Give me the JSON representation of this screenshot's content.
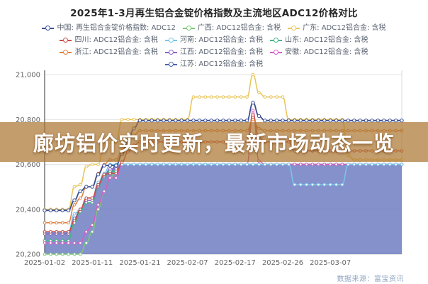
{
  "header": {
    "title": "2025年1-3月再生铝合金锭价格指数及主流地区ADC12价格对比"
  },
  "banner": {
    "text": "廊坊铝价实时更新，最新市场动态一览",
    "background": "rgba(170,115,45,0.70)",
    "text_color": "#ffffff"
  },
  "footer": {
    "source_label": "数据来源：富宝资讯"
  },
  "colors": {
    "title_text": "#262626",
    "legend_text": "#5b6472",
    "grid_line": "#e4e4e4",
    "axis_left": "#555555",
    "axis_right": "#d9d9d9",
    "tick_text": "#666666",
    "area_fill": "rgba(92,108,185,0.75)"
  },
  "chart_data": {
    "type": "line",
    "title": "2025年1-3月再生铝合金锭价格指数及主流地区ADC12价格对比",
    "xlabel": "",
    "ylabel": "",
    "grid": true,
    "legend_position": "top",
    "ylim": [
      20200,
      21000
    ],
    "y_ticks": [
      {
        "value": 21000,
        "label": "21,000"
      },
      {
        "value": 20800,
        "label": "20,800"
      },
      {
        "value": 20600,
        "label": "20,600"
      },
      {
        "value": 20400,
        "label": "20,400"
      },
      {
        "value": 20200,
        "label": "20,200"
      }
    ],
    "x": [
      "2025-01-02",
      "2025-01-03",
      "2025-01-04",
      "2025-01-06",
      "2025-01-07",
      "2025-01-08",
      "2025-01-09",
      "2025-01-10",
      "2025-01-11",
      "2025-01-13",
      "2025-01-14",
      "2025-01-15",
      "2025-01-16",
      "2025-01-17",
      "2025-01-18",
      "2025-01-20",
      "2025-01-21",
      "2025-01-22",
      "2025-01-23",
      "2025-01-24",
      "2025-01-25",
      "2025-01-26",
      "2025-01-27",
      "2025-02-06",
      "2025-02-07",
      "2025-02-08",
      "2025-02-10",
      "2025-02-11",
      "2025-02-12",
      "2025-02-13",
      "2025-02-14",
      "2025-02-15",
      "2025-02-17",
      "2025-02-18",
      "2025-02-19",
      "2025-02-20",
      "2025-02-21",
      "2025-02-22",
      "2025-02-24",
      "2025-02-25",
      "2025-02-26",
      "2025-02-27",
      "2025-02-28",
      "2025-03-01",
      "2025-03-03",
      "2025-03-04",
      "2025-03-05",
      "2025-03-06",
      "2025-03-07",
      "2025-03-08",
      "2025-03-10",
      "2025-03-11",
      "2025-03-12",
      "2025-03-13",
      "2025-03-14",
      "2025-03-15",
      "2025-03-17",
      "2025-03-18",
      "2025-03-19",
      "2025-03-20",
      "2025-03-21"
    ],
    "x_tick_indices": [
      0,
      8,
      16,
      24,
      32,
      40,
      48
    ],
    "x_tick_labels": [
      "2025-01-02",
      "2025-01-11",
      "2025-01-21",
      "2025-02-07",
      "2025-02-17",
      "2025-02-26",
      "2025-03-07"
    ],
    "series": [
      {
        "key": "china",
        "name": "中国",
        "legend_label": "中国: 再生铝合金锭价格指数: ADC12",
        "color": "#3a4f93",
        "z": 9,
        "marker_r": 2.2,
        "width": 1.8,
        "values": [
          20395,
          20395,
          20395,
          20395,
          20395,
          20440,
          20480,
          20500,
          20500,
          20555,
          20595,
          20595,
          20595,
          20645,
          20700,
          20760,
          20795,
          20795,
          20795,
          20795,
          20795,
          20795,
          20795,
          20795,
          20795,
          20795,
          20795,
          20795,
          20795,
          20795,
          20795,
          20795,
          20795,
          20795,
          20795,
          20875,
          20815,
          20795,
          20795,
          20795,
          20795,
          20795,
          20795,
          20795,
          20795,
          20795,
          20795,
          20795,
          20795,
          20795,
          20795,
          20795,
          20795,
          20795,
          20795,
          20795,
          20795,
          20795,
          20795,
          20795,
          20795
        ]
      },
      {
        "key": "guangxi",
        "name": "广西",
        "legend_label": "广西: ADC12铝合金: 含税",
        "color": "#7dc87a",
        "z": 1,
        "marker_r": 1.8,
        "width": 1.5,
        "values": [
          20200,
          20200,
          20200,
          20200,
          20200,
          20200,
          20200,
          20250,
          20300,
          20400,
          20480,
          20540,
          20570,
          20600,
          20600,
          20600,
          20600,
          20600,
          20600,
          20600,
          20600,
          20600,
          20600,
          20600,
          20600,
          20600,
          20600,
          20600,
          20600,
          20600,
          20600,
          20600,
          20600,
          20600,
          20600,
          20600,
          20600,
          20600,
          20600,
          20600,
          20600,
          20600,
          20600,
          20600,
          20600,
          20600,
          20600,
          20600,
          20600,
          20600,
          20600,
          20600,
          20600,
          20600,
          20600,
          20600,
          20600,
          20600,
          20600,
          20600,
          20600
        ]
      },
      {
        "key": "guangdong",
        "name": "广东",
        "legend_label": "广东: ADC12铝合金: 含税",
        "color": "#e9c65c",
        "z": 8,
        "marker_r": 1.8,
        "width": 1.6,
        "values": [
          20400,
          20400,
          20400,
          20400,
          20400,
          20500,
          20510,
          20590,
          20600,
          20600,
          20690,
          20700,
          20700,
          20800,
          20800,
          20800,
          20800,
          20800,
          20800,
          20800,
          20800,
          20800,
          20800,
          20800,
          20800,
          20900,
          20900,
          20900,
          20900,
          20900,
          20900,
          20900,
          20900,
          20900,
          20900,
          21000,
          20920,
          20900,
          20900,
          20900,
          20900,
          20800,
          20800,
          20800,
          20800,
          20800,
          20800,
          20800,
          20800,
          20800,
          20800,
          20640,
          20620,
          20620,
          20620,
          20620,
          20620,
          20620,
          20620,
          20620,
          20620
        ]
      },
      {
        "key": "sichuan",
        "name": "四川",
        "legend_label": "四川: ADC12铝合金: 含税",
        "color": "#cb4d49",
        "z": 6,
        "marker_r": 1.8,
        "width": 1.5,
        "values": [
          20300,
          20300,
          20300,
          20300,
          20300,
          20350,
          20400,
          20450,
          20450,
          20510,
          20555,
          20560,
          20560,
          20610,
          20655,
          20685,
          20700,
          20700,
          20700,
          20700,
          20700,
          20700,
          20700,
          20700,
          20700,
          20700,
          20700,
          20700,
          20700,
          20700,
          20700,
          20700,
          20700,
          20700,
          20700,
          20820,
          20720,
          20700,
          20700,
          20700,
          20700,
          20700,
          20660,
          20660,
          20660,
          20660,
          20660,
          20660,
          20660,
          20660,
          20660,
          20660,
          20660,
          20660,
          20660,
          20660,
          20660,
          20660,
          20660,
          20660,
          20660
        ]
      },
      {
        "key": "henan",
        "name": "河南",
        "legend_label": "河南: ADC12铝合金: 含税",
        "color": "#79c6ea",
        "z": 5,
        "marker_r": 1.8,
        "width": 1.5,
        "values": [
          20300,
          20300,
          20300,
          20300,
          20300,
          20380,
          20400,
          20450,
          20450,
          20520,
          20560,
          20600,
          20600,
          20600,
          20600,
          20600,
          20600,
          20600,
          20600,
          20600,
          20600,
          20600,
          20600,
          20600,
          20600,
          20600,
          20600,
          20600,
          20600,
          20600,
          20600,
          20600,
          20600,
          20600,
          20600,
          20600,
          20600,
          20600,
          20600,
          20600,
          20600,
          20600,
          20510,
          20510,
          20510,
          20510,
          20510,
          20510,
          20510,
          20510,
          20510,
          20600,
          20600,
          20600,
          20600,
          20600,
          20600,
          20600,
          20600,
          20600,
          20600
        ]
      },
      {
        "key": "shandong",
        "name": "山东",
        "legend_label": "山东: ADC12铝合金: 含税",
        "color": "#47b687",
        "z": 2,
        "marker_r": 1.8,
        "width": 1.5,
        "values": [
          20260,
          20260,
          20260,
          20260,
          20260,
          20340,
          20390,
          20430,
          20430,
          20500,
          20545,
          20570,
          20570,
          20600,
          20600,
          20600,
          20600,
          20600,
          20600,
          20600,
          20600,
          20600,
          20600,
          20600,
          20600,
          20600,
          20600,
          20600,
          20600,
          20600,
          20600,
          20600,
          20600,
          20600,
          20600,
          20600,
          20600,
          20600,
          20600,
          20600,
          20600,
          20600,
          20600,
          20600,
          20600,
          20600,
          20600,
          20600,
          20600,
          20600,
          20600,
          20600,
          20600,
          20600,
          20600,
          20600,
          20600,
          20600,
          20600,
          20600,
          20600
        ]
      },
      {
        "key": "zhejiang",
        "name": "浙江",
        "legend_label": "浙江: ADC12铝合金: 含税",
        "color": "#e0803c",
        "z": 7,
        "marker_r": 1.8,
        "width": 1.5,
        "values": [
          20340,
          20340,
          20340,
          20340,
          20340,
          20420,
          20450,
          20500,
          20500,
          20560,
          20600,
          20620,
          20620,
          20660,
          20700,
          20730,
          20750,
          20750,
          20750,
          20750,
          20750,
          20750,
          20750,
          20750,
          20750,
          20750,
          20750,
          20750,
          20750,
          20750,
          20750,
          20750,
          20750,
          20750,
          20750,
          20800,
          20760,
          20750,
          20750,
          20750,
          20750,
          20750,
          20750,
          20750,
          20750,
          20750,
          20750,
          20750,
          20750,
          20750,
          20750,
          20750,
          20750,
          20750,
          20750,
          20750,
          20750,
          20750,
          20750,
          20750,
          20750
        ]
      },
      {
        "key": "jiangxi",
        "name": "江西",
        "legend_label": "江西: ADC12铝合金: 含税",
        "color": "#8a64c1",
        "z": 3,
        "marker_r": 1.8,
        "width": 1.5,
        "values": [
          20290,
          20290,
          20290,
          20290,
          20290,
          20360,
          20400,
          20440,
          20440,
          20505,
          20550,
          20580,
          20580,
          20600,
          20600,
          20600,
          20600,
          20600,
          20600,
          20600,
          20600,
          20600,
          20600,
          20600,
          20600,
          20600,
          20600,
          20600,
          20600,
          20600,
          20600,
          20600,
          20600,
          20600,
          20600,
          20600,
          20600,
          20600,
          20600,
          20600,
          20600,
          20600,
          20600,
          20600,
          20600,
          20600,
          20600,
          20600,
          20600,
          20600,
          20600,
          20600,
          20600,
          20600,
          20600,
          20600,
          20600,
          20600,
          20600,
          20600,
          20600
        ]
      },
      {
        "key": "anhui",
        "name": "安徽",
        "legend_label": "安徽: ADC12铝合金: 含税",
        "color": "#d45fc5",
        "z": 4,
        "marker_r": 1.8,
        "width": 1.5,
        "values": [
          20250,
          20250,
          20250,
          20250,
          20250,
          20250,
          20250,
          20300,
          20330,
          20420,
          20480,
          20540,
          20540,
          20600,
          20600,
          20600,
          20600,
          20600,
          20600,
          20600,
          20600,
          20600,
          20600,
          20600,
          20600,
          20600,
          20600,
          20600,
          20600,
          20600,
          20600,
          20600,
          20600,
          20600,
          20600,
          20840,
          20615,
          20600,
          20600,
          20600,
          20600,
          20600,
          20600,
          20600,
          20600,
          20600,
          20600,
          20600,
          20600,
          20600,
          20600,
          20600,
          20600,
          20600,
          20600,
          20600,
          20600,
          20600,
          20600,
          20600,
          20600
        ]
      },
      {
        "key": "jiangsu",
        "name": "江苏",
        "legend_label": "江苏: ADC12铝合金: 含税",
        "color": "#4d64ad",
        "z": 0,
        "area": true,
        "marker_r": 1.8,
        "width": 1.5,
        "values": [
          20300,
          20300,
          20300,
          20300,
          20300,
          20360,
          20400,
          20430,
          20430,
          20500,
          20560,
          20560,
          20600,
          20600,
          20600,
          20600,
          20600,
          20600,
          20600,
          20600,
          20600,
          20600,
          20600,
          20600,
          20600,
          20600,
          20600,
          20600,
          20600,
          20600,
          20600,
          20600,
          20600,
          20600,
          20600,
          20600,
          20600,
          20600,
          20600,
          20600,
          20600,
          20600,
          20600,
          20600,
          20600,
          20600,
          20600,
          20600,
          20600,
          20600,
          20600,
          20600,
          20600,
          20600,
          20600,
          20600,
          20600,
          20600,
          20600,
          20600,
          20600
        ]
      }
    ]
  }
}
